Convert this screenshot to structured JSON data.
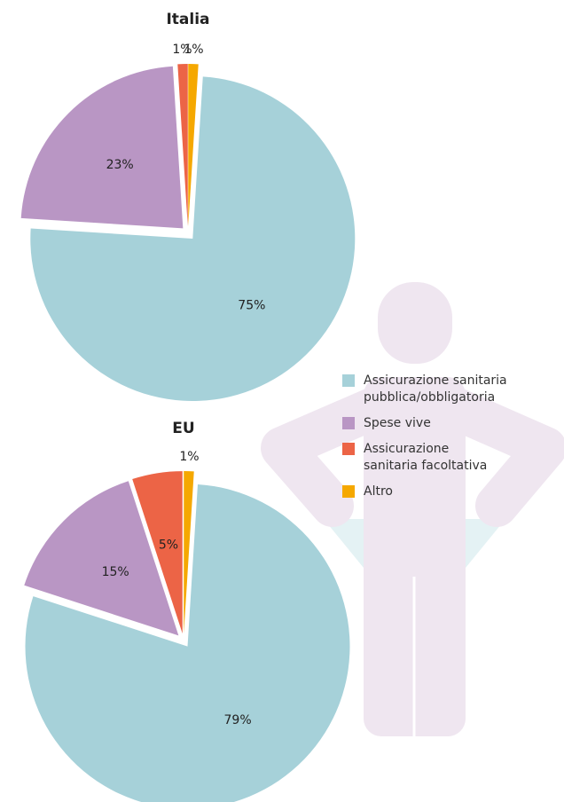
{
  "chart_data": [
    {
      "type": "pie",
      "title": "Italia",
      "categories": [
        "Assicurazione sanitaria pubblica/obbligatoria",
        "Spese vive",
        "Assicurazione sanitaria facoltativa",
        "Altro"
      ],
      "values": [
        75,
        23,
        1,
        1
      ],
      "value_labels": [
        "75%",
        "23%",
        "1%",
        "1%"
      ],
      "colors": [
        "#a6d1d9",
        "#b996c4",
        "#ec6446",
        "#f5a800"
      ]
    },
    {
      "type": "pie",
      "title": "EU",
      "categories": [
        "Assicurazione sanitaria pubblica/obbligatoria",
        "Spese vive",
        "Assicurazione sanitaria facoltativa",
        "Altro"
      ],
      "values": [
        79,
        15,
        5,
        1
      ],
      "value_labels": [
        "79%",
        "15%",
        "5%",
        "1%"
      ],
      "colors": [
        "#a6d1d9",
        "#b996c4",
        "#ec6446",
        "#f5a800"
      ]
    }
  ]
}
